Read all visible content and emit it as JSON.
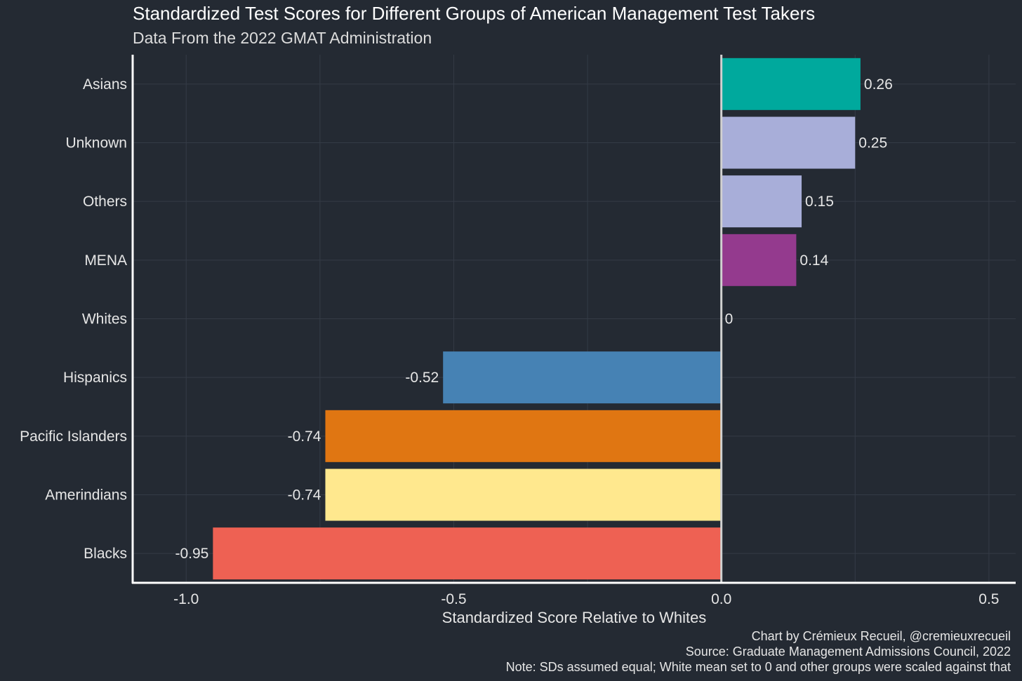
{
  "chart_data": {
    "type": "bar",
    "orientation": "horizontal",
    "title": "Standardized Test Scores for Different Groups of American Management Test Takers",
    "subtitle": "Data From the 2022 GMAT Administration",
    "xlabel": "Standardized Score Relative to Whites",
    "ylabel": "",
    "xlim": [
      -1.1,
      0.55
    ],
    "x_ticks": [
      -1.0,
      -0.5,
      0.0,
      0.5
    ],
    "x_tick_labels": [
      "-1.0",
      "-0.5",
      "0.0",
      "0.5"
    ],
    "categories": [
      "Asians",
      "Unknown",
      "Others",
      "MENA",
      "Whites",
      "Hispanics",
      "Pacific Islanders",
      "Amerindians",
      "Blacks"
    ],
    "values": [
      0.26,
      0.25,
      0.15,
      0.14,
      0,
      -0.52,
      -0.74,
      -0.74,
      -0.95
    ],
    "value_labels": [
      "0.26",
      "0.25",
      "0.15",
      "0.14",
      "0",
      "-0.52",
      "-0.74",
      "-0.74",
      "-0.95"
    ],
    "colors": [
      "#00a99d",
      "#a8aed9",
      "#a8aed9",
      "#943a8e",
      "#a8aed9",
      "#4682b4",
      "#e07612",
      "#ffe88e",
      "#ee6153"
    ],
    "grid": true
  },
  "credits": {
    "author": "Chart by Crémieux Recueil, @cremieuxrecueil",
    "source": "Source: Graduate Management Admissions Council, 2022",
    "note": "Note: SDs assumed equal; White mean set to 0 and other groups were scaled against that"
  },
  "theme": {
    "background": "#242a33",
    "grid_color": "#343b46",
    "axis_color": "#ffffff",
    "zero_line_color": "#d0d0d0",
    "text_color": "#e6e6e6"
  }
}
